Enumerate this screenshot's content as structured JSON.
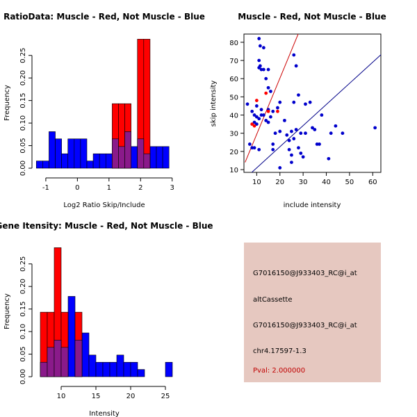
{
  "chart_data": [
    {
      "type": "histogram",
      "title": "RatioData: Muscle - Red, Not Muscle - Blue",
      "xlabel": "Log2 Ratio Skip/Include",
      "ylabel": "Frequency",
      "xlim": [
        -1.35,
        3.05
      ],
      "ylim": [
        0,
        0.285
      ],
      "xticks": [
        -1,
        0,
        1,
        2,
        3
      ],
      "xtick_labels": [
        "-1",
        "0",
        "1",
        "2",
        "3"
      ],
      "yticks": [
        0.0,
        0.05,
        0.1,
        0.15,
        0.2,
        0.25
      ],
      "ytick_labels": [
        "0.00",
        "0.05",
        "0.10",
        "0.15",
        "0.20",
        "0.25"
      ],
      "series": [
        {
          "name": "Not Muscle",
          "color": "#0000ff",
          "bins": [
            {
              "x0": -1.3,
              "x1": -1.1,
              "y": 0.016
            },
            {
              "x0": -1.1,
              "x1": -0.9,
              "y": 0.016
            },
            {
              "x0": -0.9,
              "x1": -0.7,
              "y": 0.081
            },
            {
              "x0": -0.7,
              "x1": -0.5,
              "y": 0.065
            },
            {
              "x0": -0.5,
              "x1": -0.3,
              "y": 0.032
            },
            {
              "x0": -0.3,
              "x1": -0.1,
              "y": 0.065
            },
            {
              "x0": -0.1,
              "x1": 0.1,
              "y": 0.065
            },
            {
              "x0": 0.1,
              "x1": 0.3,
              "y": 0.065
            },
            {
              "x0": 0.3,
              "x1": 0.5,
              "y": 0.016
            },
            {
              "x0": 0.5,
              "x1": 0.7,
              "y": 0.032
            },
            {
              "x0": 0.7,
              "x1": 0.9,
              "y": 0.032
            },
            {
              "x0": 0.9,
              "x1": 1.1,
              "y": 0.032
            },
            {
              "x0": 1.1,
              "x1": 1.3,
              "y": 0.065
            },
            {
              "x0": 1.3,
              "x1": 1.5,
              "y": 0.048
            },
            {
              "x0": 1.5,
              "x1": 1.7,
              "y": 0.081
            },
            {
              "x0": 1.7,
              "x1": 1.9,
              "y": 0.048
            },
            {
              "x0": 1.9,
              "x1": 2.1,
              "y": 0.065
            },
            {
              "x0": 2.1,
              "x1": 2.3,
              "y": 0.032
            },
            {
              "x0": 2.3,
              "x1": 2.5,
              "y": 0.048
            },
            {
              "x0": 2.5,
              "x1": 2.7,
              "y": 0.048
            },
            {
              "x0": 2.7,
              "x1": 2.9,
              "y": 0.048
            }
          ]
        },
        {
          "name": "Muscle",
          "color": "#ff0000",
          "bins": [
            {
              "x0": 1.1,
              "x1": 1.3,
              "y": 0.143
            },
            {
              "x0": 1.3,
              "x1": 1.5,
              "y": 0.143
            },
            {
              "x0": 1.5,
              "x1": 1.7,
              "y": 0.143
            },
            {
              "x0": 1.9,
              "x1": 2.1,
              "y": 0.286
            },
            {
              "x0": 2.1,
              "x1": 2.3,
              "y": 0.286
            }
          ]
        }
      ]
    },
    {
      "type": "scatter",
      "title": "Muscle - Red, Not Muscle - Blue",
      "xlabel": "include intensity",
      "ylabel": "skip intensity",
      "xlim": [
        4.5,
        63.5
      ],
      "ylim": [
        8.5,
        84.5
      ],
      "xticks": [
        10,
        20,
        30,
        40,
        50,
        60
      ],
      "xtick_labels": [
        "10",
        "20",
        "30",
        "40",
        "50",
        "60"
      ],
      "yticks": [
        10,
        20,
        30,
        40,
        50,
        60,
        70,
        80
      ],
      "ytick_labels": [
        "10",
        "20",
        "30",
        "40",
        "50",
        "60",
        "70",
        "80"
      ],
      "series": [
        {
          "name": "Not Muscle",
          "color": "#0000cc",
          "points": [
            [
              11,
              82
            ],
            [
              11.5,
              78
            ],
            [
              13,
              77
            ],
            [
              11,
              70
            ],
            [
              11,
              66
            ],
            [
              11.5,
              67
            ],
            [
              12,
              65
            ],
            [
              13,
              65
            ],
            [
              15,
              65
            ],
            [
              26,
              73
            ],
            [
              27,
              67
            ],
            [
              14,
              60
            ],
            [
              15,
              55
            ],
            [
              16,
              53
            ],
            [
              20,
              47
            ],
            [
              26,
              47
            ],
            [
              28,
              51
            ],
            [
              6,
              46
            ],
            [
              8,
              42
            ],
            [
              9,
              40
            ],
            [
              10,
              45
            ],
            [
              12,
              43
            ],
            [
              13,
              40
            ],
            [
              15,
              43
            ],
            [
              17,
              42
            ],
            [
              19,
              44
            ],
            [
              10,
              39
            ],
            [
              11,
              38
            ],
            [
              12,
              40
            ],
            [
              16,
              39
            ],
            [
              22,
              37
            ],
            [
              9,
              36
            ],
            [
              10,
              35
            ],
            [
              14,
              37
            ],
            [
              15,
              36
            ],
            [
              18,
              30
            ],
            [
              20,
              31
            ],
            [
              23,
              29
            ],
            [
              25,
              31
            ],
            [
              27,
              32
            ],
            [
              29,
              30
            ],
            [
              31,
              30
            ],
            [
              34,
              33
            ],
            [
              35,
              32
            ],
            [
              38,
              40
            ],
            [
              42,
              30
            ],
            [
              44,
              34
            ],
            [
              47,
              30
            ],
            [
              61,
              33
            ],
            [
              31,
              46
            ],
            [
              33,
              47
            ],
            [
              9,
              22
            ],
            [
              11,
              21
            ],
            [
              7,
              24
            ],
            [
              8,
              22
            ],
            [
              17,
              21
            ],
            [
              24,
              21
            ],
            [
              25,
              18
            ],
            [
              28,
              22
            ],
            [
              29,
              19
            ],
            [
              30,
              17
            ],
            [
              36,
              24
            ],
            [
              37,
              24
            ],
            [
              41,
              16
            ],
            [
              25,
              14
            ],
            [
              20,
              11
            ],
            [
              24,
              26
            ],
            [
              26,
              27
            ],
            [
              17,
              24
            ]
          ]
        },
        {
          "name": "Muscle",
          "color": "#ff0000",
          "points": [
            [
              10,
              48
            ],
            [
              14,
              52
            ],
            [
              15,
              42
            ],
            [
              19,
              42
            ],
            [
              9,
              34
            ],
            [
              8,
              35
            ]
          ]
        }
      ],
      "lines": [
        {
          "name": "fit-red",
          "color": "#cc0000",
          "x": [
            5,
            29
          ],
          "y": [
            14,
            88
          ]
        },
        {
          "name": "diagonal",
          "color": "#000088",
          "x": [
            4,
            66
          ],
          "y": [
            4,
            76
          ]
        }
      ]
    },
    {
      "type": "histogram",
      "title": "Gene Itensity: Muscle - Red, Not Muscle - Blue",
      "xlabel": "Intensity",
      "ylabel": "Frequency",
      "xlim": [
        6.2,
        26.2
      ],
      "ylim": [
        0,
        0.285
      ],
      "xticks": [
        10,
        15,
        20,
        25
      ],
      "xtick_labels": [
        "10",
        "15",
        "20",
        "25"
      ],
      "yticks": [
        0.0,
        0.05,
        0.1,
        0.15,
        0.2,
        0.25
      ],
      "ytick_labels": [
        "0.00",
        "0.05",
        "0.10",
        "0.15",
        "0.20",
        "0.25"
      ],
      "series": [
        {
          "name": "Not Muscle",
          "color": "#0000ff",
          "bins": [
            {
              "x0": 7,
              "x1": 8,
              "y": 0.032
            },
            {
              "x0": 8,
              "x1": 9,
              "y": 0.065
            },
            {
              "x0": 9,
              "x1": 10,
              "y": 0.081
            },
            {
              "x0": 10,
              "x1": 11,
              "y": 0.065
            },
            {
              "x0": 11,
              "x1": 12,
              "y": 0.178
            },
            {
              "x0": 12,
              "x1": 13,
              "y": 0.081
            },
            {
              "x0": 13,
              "x1": 14,
              "y": 0.097
            },
            {
              "x0": 14,
              "x1": 15,
              "y": 0.048
            },
            {
              "x0": 15,
              "x1": 16,
              "y": 0.032
            },
            {
              "x0": 16,
              "x1": 17,
              "y": 0.032
            },
            {
              "x0": 17,
              "x1": 18,
              "y": 0.032
            },
            {
              "x0": 18,
              "x1": 19,
              "y": 0.048
            },
            {
              "x0": 19,
              "x1": 20,
              "y": 0.032
            },
            {
              "x0": 20,
              "x1": 21,
              "y": 0.032
            },
            {
              "x0": 21,
              "x1": 22,
              "y": 0.016
            },
            {
              "x0": 25,
              "x1": 26,
              "y": 0.032
            }
          ]
        },
        {
          "name": "Muscle",
          "color": "#ff0000",
          "bins": [
            {
              "x0": 7,
              "x1": 8,
              "y": 0.143
            },
            {
              "x0": 8,
              "x1": 9,
              "y": 0.143
            },
            {
              "x0": 9,
              "x1": 10,
              "y": 0.286
            },
            {
              "x0": 10,
              "x1": 11,
              "y": 0.143
            },
            {
              "x0": 12,
              "x1": 13,
              "y": 0.143
            }
          ]
        }
      ]
    }
  ],
  "info_panel": {
    "background": "#e6c8c0",
    "probe_id": "G7016150@J933403_RC@i_at",
    "event_type": "altCassette",
    "probe_id_2": "G7016150@J933403_RC@i_at",
    "location": "chr4.17597-1.3",
    "pval": "Pval: 2.000000"
  }
}
